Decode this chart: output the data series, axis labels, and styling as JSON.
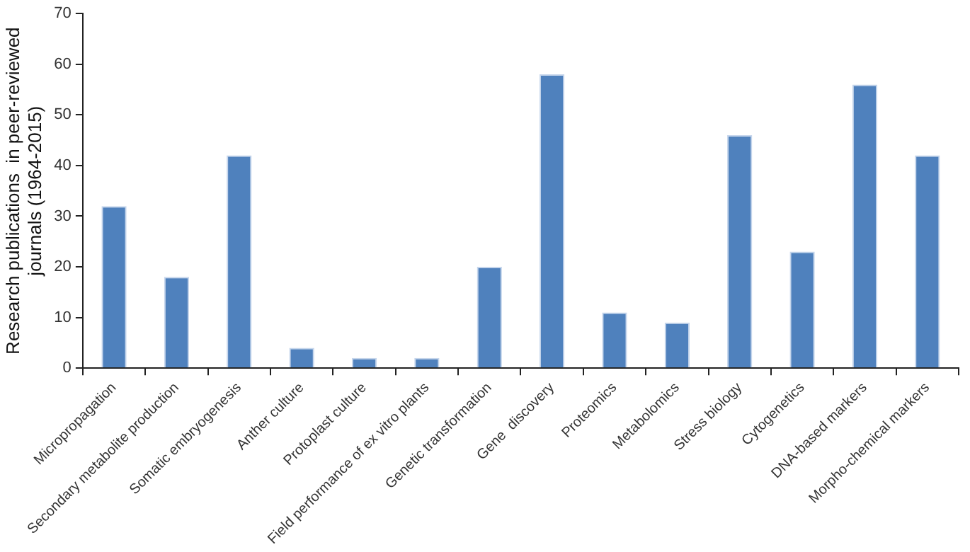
{
  "chart_data": {
    "type": "bar",
    "ylabel": "Research publications  in peer-reviewed\njournals (1964-2015)",
    "categories": [
      "Micropropagation",
      "Secondary metabolite production",
      "Somatic embryogenesis",
      "Anther culture",
      "Protoplast culture",
      "Field performance of ex vitro plants",
      "Genetic transformation",
      "Gene  discovery",
      "Proteomics",
      "Metabolomics",
      "Stress biology",
      "Cytogenetics",
      "DNA-based markers",
      "Morpho-chemical markers"
    ],
    "values": [
      32,
      18,
      42,
      4,
      2,
      2,
      20,
      58,
      11,
      9,
      46,
      23,
      56,
      42
    ],
    "color": "#4f81bd",
    "ylim": [
      0,
      70
    ],
    "yticks": [
      0,
      10,
      20,
      30,
      40,
      50,
      60,
      70
    ],
    "grid": false,
    "legend": false
  }
}
